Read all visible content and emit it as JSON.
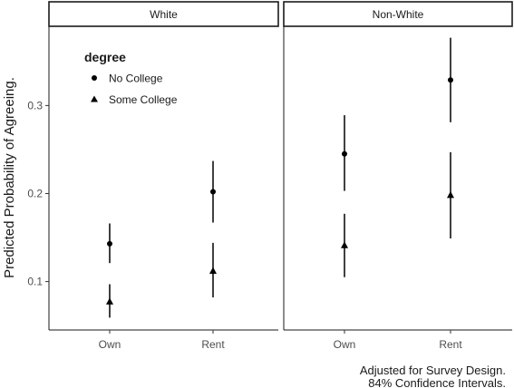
{
  "chart_data": {
    "type": "scatter",
    "subtype": "faceted point-range",
    "panels": [
      "White",
      "Non-White"
    ],
    "categories": [
      "Own",
      "Rent"
    ],
    "ylabel": "Predicted Probability of Agreeing.",
    "xlabel": "",
    "ylim": [
      0.045,
      0.39
    ],
    "yticks": [
      0.1,
      0.2,
      0.3
    ],
    "ytick_labels": [
      "0.1",
      "0.2",
      "0.3"
    ],
    "grid": false,
    "legend": {
      "title": "degree",
      "placement": "top-left inside",
      "entries": [
        {
          "label": "No College",
          "shape": "circle"
        },
        {
          "label": "Some College",
          "shape": "triangle"
        }
      ]
    },
    "caption": [
      "Adjusted for Survey Design.",
      "84% Confidence Intervals."
    ],
    "series": [
      {
        "name": "No College",
        "shape": "circle",
        "points": [
          {
            "panel": "White",
            "x": "Own",
            "y": 0.143,
            "low": 0.121,
            "high": 0.166
          },
          {
            "panel": "White",
            "x": "Rent",
            "y": 0.202,
            "low": 0.167,
            "high": 0.237
          },
          {
            "panel": "Non-White",
            "x": "Own",
            "y": 0.245,
            "low": 0.203,
            "high": 0.289
          },
          {
            "panel": "Non-White",
            "x": "Rent",
            "y": 0.329,
            "low": 0.281,
            "high": 0.377
          }
        ]
      },
      {
        "name": "Some College",
        "shape": "triangle",
        "points": [
          {
            "panel": "White",
            "x": "Own",
            "y": 0.077,
            "low": 0.059,
            "high": 0.097
          },
          {
            "panel": "White",
            "x": "Rent",
            "y": 0.112,
            "low": 0.082,
            "high": 0.144
          },
          {
            "panel": "Non-White",
            "x": "Own",
            "y": 0.141,
            "low": 0.105,
            "high": 0.177
          },
          {
            "panel": "Non-White",
            "x": "Rent",
            "y": 0.198,
            "low": 0.149,
            "high": 0.247
          }
        ]
      }
    ],
    "colors": {
      "ink": "#000000",
      "frame": "#1a1a1a",
      "tick_label": "#4d4d4d"
    }
  }
}
